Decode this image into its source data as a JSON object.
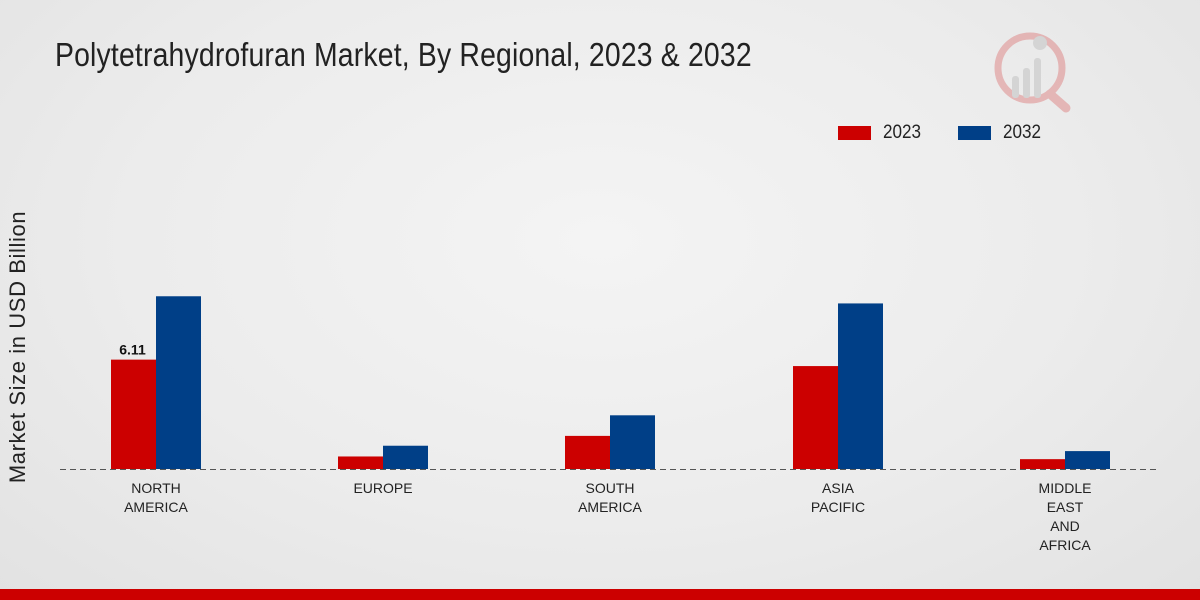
{
  "chart_data": {
    "type": "bar",
    "title": "Polytetrahydrofuran Market, By Regional, 2023 & 2032",
    "xlabel": "",
    "ylabel": "Market Size in USD Billion",
    "categories": [
      [
        "NORTH",
        "AMERICA"
      ],
      [
        "EUROPE"
      ],
      [
        "SOUTH",
        "AMERICA"
      ],
      [
        "ASIA",
        "PACIFIC"
      ],
      [
        "MIDDLE",
        "EAST",
        "AND",
        "AFRICA"
      ]
    ],
    "series": [
      {
        "name": "2023",
        "color": "#cc0000",
        "values": [
          6.11,
          0.7,
          1.85,
          5.75,
          0.55
        ]
      },
      {
        "name": "2032",
        "color": "#003f87",
        "values": [
          9.65,
          1.3,
          3.0,
          9.25,
          1.0
        ]
      }
    ],
    "data_labels": [
      {
        "series": 0,
        "index": 0,
        "text": "6.11"
      }
    ],
    "ylim": [
      0,
      20
    ],
    "grid": false,
    "baseline": "dashed",
    "legend_position": "top-right"
  },
  "colors": {
    "accent": "#cc0000",
    "secondary": "#003f87",
    "footer": "#cc0000"
  }
}
